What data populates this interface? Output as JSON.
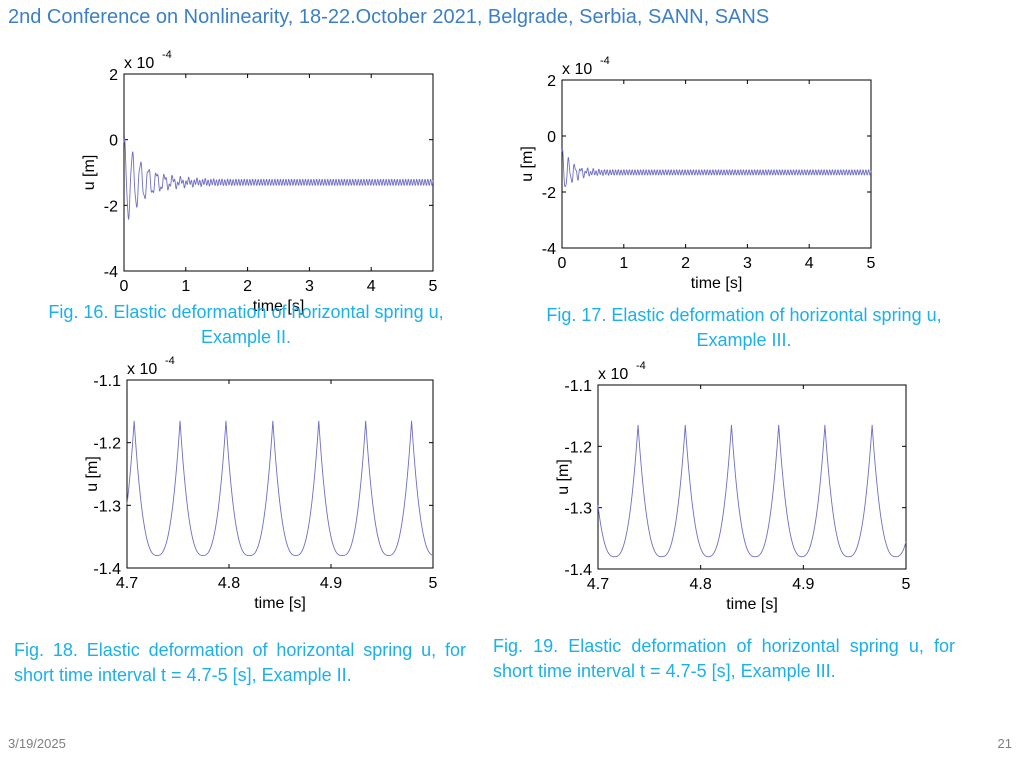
{
  "header": {
    "title": "2nd Conference on Nonlinearity, 18-22.October 2021, Belgrade, Serbia, SANN, SANS"
  },
  "captions": {
    "fig16_line1": "Fig. 16. Elastic deformation of horizontal spring u,",
    "fig16_line2": "Example II.",
    "fig17_line1": "Fig. 17. Elastic deformation of horizontal spring u,",
    "fig17_line2": "Example III.",
    "fig18": "Fig. 18. Elastic deformation of horizontal spring u,  for short time interval t = 4.7-5 [s],  Example II.",
    "fig19": "Fig. 19. Elastic deformation of horizontal spring u,  for short time interval t = 4.7-5 [s],  Example III."
  },
  "footer": {
    "date": "3/19/2025",
    "page": "21"
  },
  "colors": {
    "header": "#3b7fc8",
    "caption": "#1ab0ec",
    "series": "#6e6ec8",
    "footer": "#7f7f7f"
  },
  "chart_data": [
    {
      "id": "fig16",
      "type": "line",
      "xlabel": "time [s]",
      "ylabel": "u [m]",
      "scale_base": "x 10",
      "scale_exp": "-4",
      "xlim": [
        0,
        5
      ],
      "ylim": [
        -4,
        2
      ],
      "xticks": [
        "0",
        "1",
        "2",
        "3",
        "4",
        "5"
      ],
      "yticks": [
        "2",
        "0",
        "-2",
        "-4"
      ],
      "series": [
        {
          "mean": -1.3,
          "steady_amplitude": 0.09,
          "period": 0.045,
          "transient_amplitude": 1.3,
          "decay_time": 0.35,
          "transient_period": 0.13
        }
      ]
    },
    {
      "id": "fig17",
      "type": "line",
      "xlabel": "time [s]",
      "ylabel": "u [m]",
      "scale_base": "x 10",
      "scale_exp": "-4",
      "xlim": [
        0,
        5
      ],
      "ylim": [
        -4,
        2
      ],
      "xticks": [
        "0",
        "1",
        "2",
        "3",
        "4",
        "5"
      ],
      "yticks": [
        "2",
        "0",
        "-2",
        "-4"
      ],
      "series": [
        {
          "mean": -1.3,
          "steady_amplitude": 0.09,
          "period": 0.045,
          "transient_amplitude": 0.8,
          "decay_time": 0.18,
          "transient_period": 0.1
        }
      ]
    },
    {
      "id": "fig18",
      "type": "line",
      "xlabel": "time [s]",
      "ylabel": "u [m]",
      "scale_base": "x 10",
      "scale_exp": "-4",
      "xlim": [
        4.7,
        5
      ],
      "ylim": [
        -1.4,
        -1.1
      ],
      "xticks": [
        "4.7",
        "4.8",
        "4.9",
        "5"
      ],
      "yticks": [
        "-1.1",
        "-1.2",
        "-1.3",
        "-1.4"
      ],
      "series": [
        {
          "peaks": [
            4.752,
            4.797,
            4.843,
            4.888,
            4.934,
            4.979
          ],
          "peak_value": -1.165,
          "trough_value": -1.38
        }
      ]
    },
    {
      "id": "fig19",
      "type": "line",
      "xlabel": "time [s]",
      "ylabel": "u [m]",
      "scale_base": "x 10",
      "scale_exp": "-4",
      "xlim": [
        4.7,
        5
      ],
      "ylim": [
        -1.4,
        -1.1
      ],
      "xticks": [
        "4.7",
        "4.8",
        "4.9",
        "5"
      ],
      "yticks": [
        "-1.1",
        "-1.2",
        "-1.3",
        "-1.4"
      ],
      "series": [
        {
          "peaks": [
            4.739,
            4.785,
            4.83,
            4.876,
            4.921,
            4.967
          ],
          "peak_value": -1.165,
          "trough_value": -1.38
        }
      ]
    }
  ]
}
